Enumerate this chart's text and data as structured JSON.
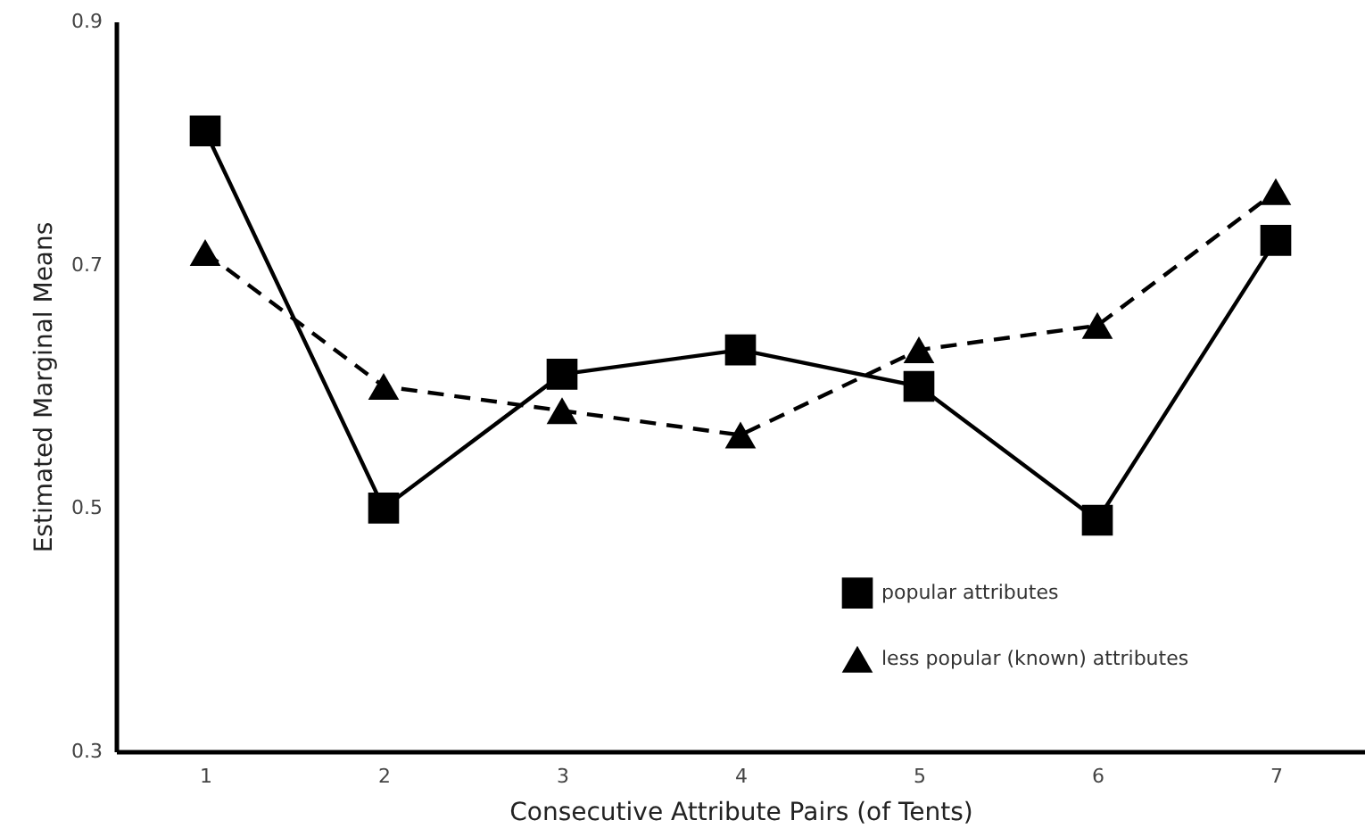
{
  "chart_data": {
    "type": "line",
    "xlabel": "Consecutive Attribute Pairs (of Tents)",
    "ylabel": "Estimated Marginal Means",
    "categories": [
      "1",
      "2",
      "3",
      "4",
      "5",
      "6",
      "7"
    ],
    "series": [
      {
        "name": "popular attributes",
        "color": "#000000",
        "marker": "square",
        "line_style": "solid",
        "values": [
          0.81,
          0.5,
          0.61,
          0.63,
          0.6,
          0.49,
          0.72
        ]
      },
      {
        "name": "less popular (known) attributes",
        "color": "#000000",
        "marker": "triangle",
        "line_style": "dashed",
        "values": [
          0.71,
          0.6,
          0.58,
          0.56,
          0.63,
          0.65,
          0.76
        ]
      }
    ],
    "ylim": [
      0.3,
      0.9
    ],
    "yticks": [
      0.3,
      0.5,
      0.7,
      0.9
    ],
    "grid": false,
    "legend": "bottom right"
  }
}
